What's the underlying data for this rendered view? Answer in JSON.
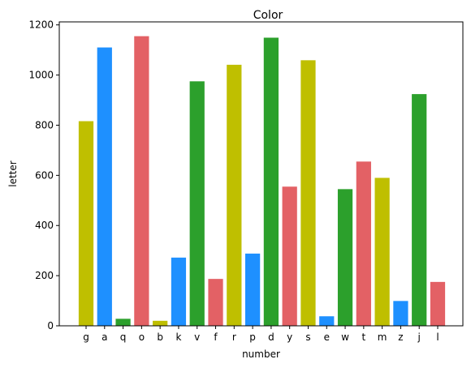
{
  "chart_data": {
    "type": "bar",
    "title": "Color",
    "xlabel": "number",
    "ylabel": "letter",
    "categories": [
      "g",
      "a",
      "q",
      "o",
      "b",
      "k",
      "v",
      "f",
      "r",
      "p",
      "d",
      "y",
      "s",
      "e",
      "w",
      "t",
      "m",
      "z",
      "j",
      "l"
    ],
    "values": [
      816,
      1110,
      28,
      1155,
      20,
      272,
      975,
      187,
      1041,
      288,
      1149,
      555,
      1059,
      38,
      545,
      655,
      590,
      99,
      924,
      175
    ],
    "colors": [
      "#bfbf00",
      "#1e90ff",
      "#2ca02c",
      "#e36165",
      "#bfbf00",
      "#1e90ff",
      "#2ca02c",
      "#e36165",
      "#bfbf00",
      "#1e90ff",
      "#2ca02c",
      "#e36165",
      "#bfbf00",
      "#1e90ff",
      "#2ca02c",
      "#e36165",
      "#bfbf00",
      "#1e90ff",
      "#2ca02c",
      "#e36165"
    ],
    "ylim": [
      0,
      1212
    ],
    "yticks": [
      0,
      200,
      400,
      600,
      800,
      1000,
      1200
    ],
    "grid": false,
    "legend": "none"
  }
}
